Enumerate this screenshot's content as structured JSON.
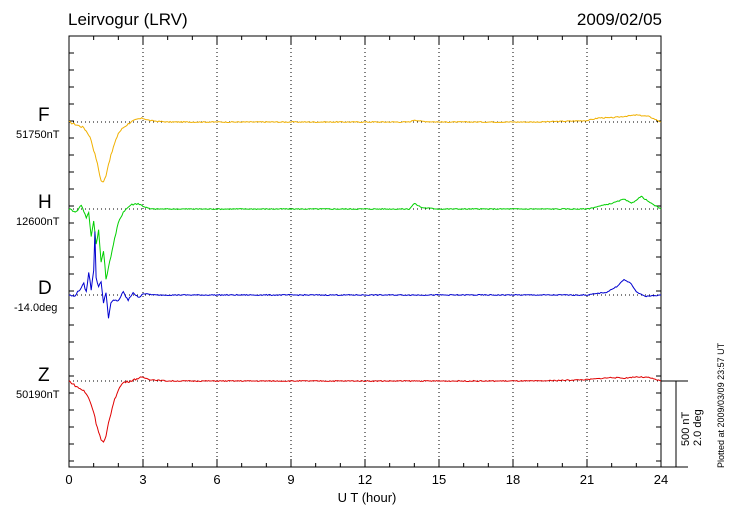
{
  "header": {
    "station": "Leirvogur (LRV)",
    "date": "2009/02/05"
  },
  "components": [
    {
      "label": "F",
      "baseline": "51750nT",
      "color": "#f0b000"
    },
    {
      "label": "H",
      "baseline": "12600nT",
      "color": "#00d000"
    },
    {
      "label": "D",
      "baseline": "-14.0deg",
      "color": "#0000d0"
    },
    {
      "label": "Z",
      "baseline": "50190nT",
      "color": "#e00000"
    }
  ],
  "scale": {
    "nt": "500 nT",
    "deg": "2.0 deg"
  },
  "plotted_at": "Plotted at 2009/03/09 23:57 UT",
  "chart_data": {
    "type": "line",
    "title": "Leirvogur (LRV)",
    "xlabel": "U T (hour)",
    "ylabel": "",
    "xlim": [
      0,
      24
    ],
    "xticks": [
      0,
      3,
      6,
      9,
      12,
      15,
      18,
      21,
      24
    ],
    "x_tick_labels": [
      "0",
      "3",
      "6",
      "9",
      "12",
      "15",
      "18",
      "21",
      "24"
    ],
    "grid": "vertical dotted at every 3 hours, horizontal dotted at each component baseline",
    "units": "deviation from baseline in nT (D in deg, 500 nT = 2.0 deg)",
    "series": [
      {
        "name": "F",
        "color": "#f0b000",
        "x": [
          0,
          0.3,
          0.6,
          0.8,
          0.9,
          1.0,
          1.1,
          1.2,
          1.3,
          1.4,
          1.5,
          1.6,
          1.8,
          2.0,
          2.2,
          2.5,
          2.8,
          3.0,
          3.3,
          3.6,
          4,
          5,
          6,
          8,
          10,
          12,
          13.8,
          14,
          14.3,
          15,
          17,
          19,
          21,
          21.5,
          22,
          22.5,
          23,
          23.5,
          24
        ],
        "y": [
          0,
          -20,
          -40,
          -90,
          -130,
          -200,
          -260,
          -340,
          -420,
          -430,
          -380,
          -300,
          -180,
          -80,
          -40,
          0,
          20,
          25,
          10,
          5,
          0,
          0,
          0,
          0,
          0,
          0,
          0,
          15,
          5,
          0,
          0,
          0,
          10,
          30,
          30,
          40,
          50,
          40,
          0
        ]
      },
      {
        "name": "H",
        "color": "#00d000",
        "x": [
          0,
          0.3,
          0.5,
          0.7,
          0.8,
          0.9,
          1.0,
          1.1,
          1.2,
          1.3,
          1.4,
          1.5,
          1.6,
          1.8,
          2.0,
          2.2,
          2.5,
          2.8,
          3.0,
          3.3,
          4,
          6,
          8,
          10,
          12,
          13.8,
          14,
          14.3,
          15,
          17,
          19,
          21,
          22,
          22.5,
          22.8,
          23.2,
          23.6,
          24
        ],
        "y": [
          0,
          -20,
          30,
          -60,
          -30,
          -200,
          -80,
          -250,
          -150,
          -380,
          -300,
          -500,
          -420,
          -250,
          -100,
          -20,
          30,
          40,
          20,
          0,
          0,
          0,
          0,
          0,
          0,
          0,
          40,
          10,
          0,
          0,
          0,
          0,
          40,
          70,
          40,
          90,
          40,
          0
        ]
      },
      {
        "name": "D",
        "color": "#0000d0",
        "x": [
          0,
          0.2,
          0.4,
          0.6,
          0.7,
          0.8,
          0.9,
          1.0,
          1.05,
          1.1,
          1.2,
          1.3,
          1.4,
          1.5,
          1.6,
          1.7,
          1.8,
          2.0,
          2.2,
          2.4,
          2.6,
          2.8,
          3.0,
          3.5,
          4,
          6,
          8,
          10,
          12,
          14,
          15,
          17,
          19,
          21,
          21.8,
          22.2,
          22.5,
          22.8,
          23,
          23.4,
          24
        ],
        "y": [
          0,
          -10,
          30,
          80,
          20,
          160,
          40,
          180,
          450,
          120,
          60,
          100,
          -60,
          20,
          -160,
          -60,
          -40,
          -40,
          20,
          -40,
          20,
          -20,
          10,
          0,
          0,
          0,
          0,
          0,
          0,
          0,
          0,
          0,
          0,
          0,
          20,
          60,
          110,
          80,
          20,
          -10,
          0
        ]
      },
      {
        "name": "Z",
        "color": "#e00000",
        "x": [
          0,
          0.3,
          0.6,
          0.8,
          0.9,
          1.0,
          1.1,
          1.2,
          1.3,
          1.4,
          1.5,
          1.6,
          1.8,
          2.0,
          2.2,
          2.5,
          2.8,
          3.0,
          3.3,
          4,
          6,
          8,
          10,
          12,
          14,
          15,
          17,
          19,
          21,
          22,
          22.5,
          23,
          23.5,
          24
        ],
        "y": [
          0,
          -40,
          -70,
          -120,
          -170,
          -220,
          -300,
          -360,
          -420,
          -440,
          -400,
          -300,
          -160,
          -60,
          -10,
          0,
          20,
          25,
          10,
          0,
          0,
          0,
          0,
          0,
          0,
          0,
          0,
          0,
          10,
          25,
          20,
          30,
          25,
          0
        ]
      }
    ]
  }
}
